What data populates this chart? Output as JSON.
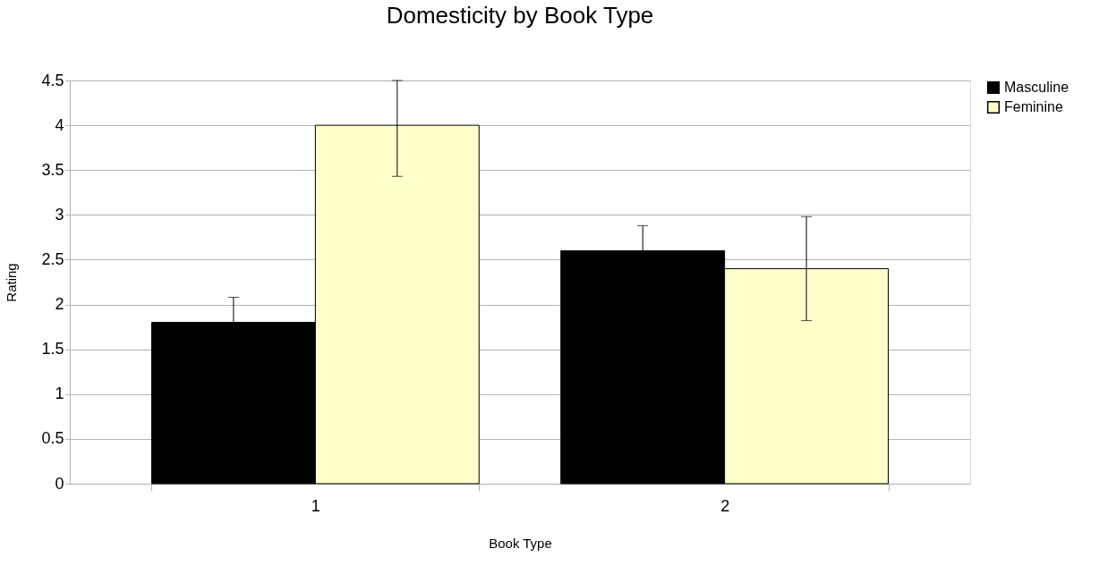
{
  "chart_data": {
    "type": "bar",
    "title": "Domesticity by Book Type",
    "xlabel": "Book Type",
    "ylabel": "Rating",
    "categories": [
      "1",
      "2"
    ],
    "series": [
      {
        "name": "Masculine",
        "color": "#000000",
        "values": [
          1.8,
          2.6
        ],
        "errors": [
          0.28,
          0.28
        ]
      },
      {
        "name": "Feminine",
        "color": "#ffffcc",
        "values": [
          4.0,
          2.4
        ],
        "errors": [
          [
            3.43,
            4.5
          ],
          0.58
        ]
      }
    ],
    "ylim": [
      0,
      4.5
    ],
    "yticks": [
      0,
      0.5,
      1,
      1.5,
      2,
      2.5,
      3,
      3.5,
      4,
      4.5
    ],
    "grid": "y",
    "legend": "right"
  }
}
